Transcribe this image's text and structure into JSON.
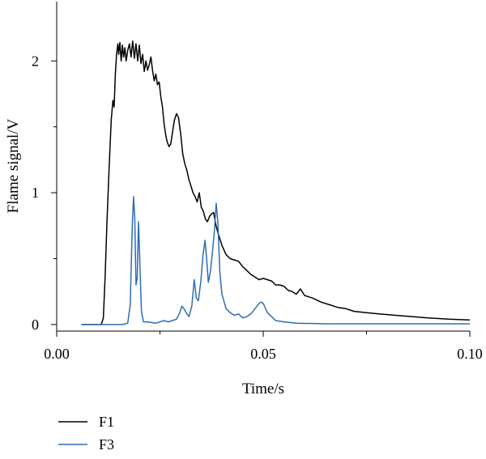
{
  "chart_data": {
    "type": "line",
    "title": "",
    "xlabel": "Time/s",
    "ylabel": "Flame signal/V",
    "xlim": [
      0.0,
      0.1
    ],
    "ylim": [
      -0.05,
      2.45
    ],
    "x_ticks": [
      {
        "value": 0.0,
        "label": "0.00"
      },
      {
        "value": 0.05,
        "label": "0.05"
      },
      {
        "value": 0.1,
        "label": "0.10"
      }
    ],
    "y_ticks": [
      {
        "value": 0,
        "label": "0"
      },
      {
        "value": 1,
        "label": "1"
      },
      {
        "value": 2,
        "label": "2"
      }
    ],
    "grid": false,
    "legend_position": "bottom-left",
    "series": [
      {
        "name": "F1",
        "color": "#000000",
        "points": [
          [
            0.006,
            0.0
          ],
          [
            0.0108,
            0.0
          ],
          [
            0.0113,
            0.05
          ],
          [
            0.0117,
            0.35
          ],
          [
            0.0122,
            0.8
          ],
          [
            0.0127,
            1.2
          ],
          [
            0.0132,
            1.55
          ],
          [
            0.0136,
            1.7
          ],
          [
            0.0139,
            1.65
          ],
          [
            0.0142,
            1.9
          ],
          [
            0.0145,
            2.05
          ],
          [
            0.0148,
            2.13
          ],
          [
            0.015,
            2.05
          ],
          [
            0.0153,
            2.14
          ],
          [
            0.0156,
            2.0
          ],
          [
            0.0159,
            2.12
          ],
          [
            0.0162,
            2.03
          ],
          [
            0.0165,
            2.1
          ],
          [
            0.0168,
            2.0
          ],
          [
            0.0172,
            2.08
          ],
          [
            0.0176,
            2.13
          ],
          [
            0.018,
            2.03
          ],
          [
            0.0184,
            2.15
          ],
          [
            0.0188,
            2.02
          ],
          [
            0.0192,
            2.13
          ],
          [
            0.0196,
            2.0
          ],
          [
            0.02,
            2.12
          ],
          [
            0.0204,
            1.98
          ],
          [
            0.0208,
            2.05
          ],
          [
            0.0212,
            1.92
          ],
          [
            0.0216,
            2.0
          ],
          [
            0.022,
            1.93
          ],
          [
            0.0224,
            1.97
          ],
          [
            0.0228,
            2.03
          ],
          [
            0.0232,
            1.93
          ],
          [
            0.0236,
            1.85
          ],
          [
            0.024,
            1.9
          ],
          [
            0.0244,
            1.82
          ],
          [
            0.0248,
            1.84
          ],
          [
            0.0252,
            1.73
          ],
          [
            0.0256,
            1.65
          ],
          [
            0.026,
            1.52
          ],
          [
            0.0265,
            1.42
          ],
          [
            0.0268,
            1.38
          ],
          [
            0.0272,
            1.35
          ],
          [
            0.0276,
            1.37
          ],
          [
            0.028,
            1.45
          ],
          [
            0.0285,
            1.55
          ],
          [
            0.029,
            1.6
          ],
          [
            0.0295,
            1.57
          ],
          [
            0.03,
            1.45
          ],
          [
            0.0305,
            1.3
          ],
          [
            0.031,
            1.22
          ],
          [
            0.0315,
            1.17
          ],
          [
            0.032,
            1.1
          ],
          [
            0.0325,
            1.05
          ],
          [
            0.033,
            1.0
          ],
          [
            0.0335,
            0.97
          ],
          [
            0.034,
            0.93
          ],
          [
            0.0345,
            1.0
          ],
          [
            0.035,
            0.89
          ],
          [
            0.0355,
            0.86
          ],
          [
            0.036,
            0.8
          ],
          [
            0.0365,
            0.78
          ],
          [
            0.037,
            0.82
          ],
          [
            0.0375,
            0.84
          ],
          [
            0.038,
            0.85
          ],
          [
            0.0385,
            0.76
          ],
          [
            0.039,
            0.7
          ],
          [
            0.0395,
            0.65
          ],
          [
            0.04,
            0.6
          ],
          [
            0.041,
            0.53
          ],
          [
            0.042,
            0.5
          ],
          [
            0.043,
            0.49
          ],
          [
            0.044,
            0.48
          ],
          [
            0.045,
            0.44
          ],
          [
            0.046,
            0.41
          ],
          [
            0.047,
            0.38
          ],
          [
            0.048,
            0.36
          ],
          [
            0.049,
            0.34
          ],
          [
            0.05,
            0.35
          ],
          [
            0.051,
            0.34
          ],
          [
            0.052,
            0.33
          ],
          [
            0.053,
            0.3
          ],
          [
            0.054,
            0.3
          ],
          [
            0.055,
            0.29
          ],
          [
            0.056,
            0.26
          ],
          [
            0.057,
            0.25
          ],
          [
            0.058,
            0.23
          ],
          [
            0.059,
            0.27
          ],
          [
            0.06,
            0.22
          ],
          [
            0.062,
            0.2
          ],
          [
            0.064,
            0.17
          ],
          [
            0.066,
            0.15
          ],
          [
            0.068,
            0.13
          ],
          [
            0.07,
            0.12
          ],
          [
            0.072,
            0.1
          ],
          [
            0.075,
            0.09
          ],
          [
            0.078,
            0.08
          ],
          [
            0.082,
            0.07
          ],
          [
            0.086,
            0.06
          ],
          [
            0.09,
            0.05
          ],
          [
            0.095,
            0.04
          ],
          [
            0.1,
            0.035
          ]
        ]
      },
      {
        "name": "F3",
        "color": "#2e6db3",
        "points": [
          [
            0.006,
            0.0
          ],
          [
            0.012,
            0.0
          ],
          [
            0.016,
            0.0
          ],
          [
            0.0172,
            0.01
          ],
          [
            0.0178,
            0.15
          ],
          [
            0.0183,
            0.75
          ],
          [
            0.0186,
            0.97
          ],
          [
            0.0189,
            0.8
          ],
          [
            0.0192,
            0.3
          ],
          [
            0.0195,
            0.35
          ],
          [
            0.0198,
            0.78
          ],
          [
            0.0201,
            0.5
          ],
          [
            0.0205,
            0.1
          ],
          [
            0.021,
            0.02
          ],
          [
            0.022,
            0.02
          ],
          [
            0.024,
            0.01
          ],
          [
            0.026,
            0.03
          ],
          [
            0.027,
            0.02
          ],
          [
            0.028,
            0.03
          ],
          [
            0.029,
            0.04
          ],
          [
            0.0298,
            0.09
          ],
          [
            0.0303,
            0.14
          ],
          [
            0.0308,
            0.12
          ],
          [
            0.0315,
            0.08
          ],
          [
            0.032,
            0.06
          ],
          [
            0.0327,
            0.14
          ],
          [
            0.0333,
            0.34
          ],
          [
            0.0338,
            0.2
          ],
          [
            0.0343,
            0.18
          ],
          [
            0.0349,
            0.33
          ],
          [
            0.0354,
            0.52
          ],
          [
            0.0359,
            0.64
          ],
          [
            0.0363,
            0.5
          ],
          [
            0.0367,
            0.32
          ],
          [
            0.0372,
            0.4
          ],
          [
            0.0377,
            0.55
          ],
          [
            0.0382,
            0.72
          ],
          [
            0.0386,
            0.92
          ],
          [
            0.039,
            0.78
          ],
          [
            0.0395,
            0.4
          ],
          [
            0.04,
            0.23
          ],
          [
            0.041,
            0.12
          ],
          [
            0.042,
            0.09
          ],
          [
            0.043,
            0.07
          ],
          [
            0.044,
            0.08
          ],
          [
            0.045,
            0.05
          ],
          [
            0.046,
            0.06
          ],
          [
            0.047,
            0.08
          ],
          [
            0.048,
            0.12
          ],
          [
            0.049,
            0.16
          ],
          [
            0.0495,
            0.17
          ],
          [
            0.05,
            0.16
          ],
          [
            0.051,
            0.09
          ],
          [
            0.052,
            0.06
          ],
          [
            0.053,
            0.03
          ],
          [
            0.055,
            0.02
          ],
          [
            0.058,
            0.01
          ],
          [
            0.065,
            0.005
          ],
          [
            0.08,
            0.005
          ],
          [
            0.1,
            0.005
          ]
        ]
      }
    ]
  }
}
